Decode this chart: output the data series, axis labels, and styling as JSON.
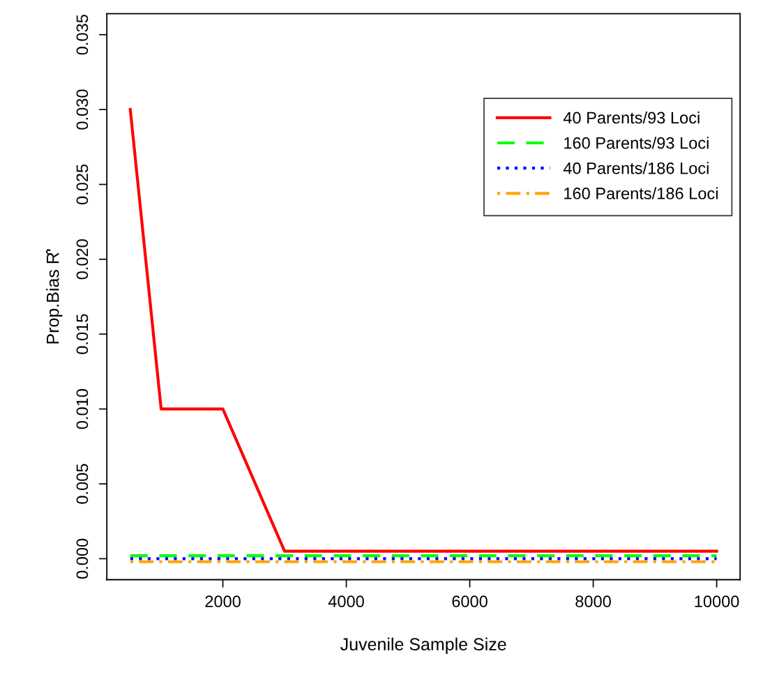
{
  "chart_data": {
    "type": "line",
    "xlabel": "Juvenile Sample Size",
    "ylabel": "Prop.Bias R̂'",
    "x": [
      500,
      1000,
      2000,
      3000,
      4000,
      5000,
      6000,
      7000,
      8000,
      9000,
      10000
    ],
    "series": [
      {
        "name": "40 Parents/93 Loci",
        "color": "#ff0000",
        "line_style": "solid",
        "values": [
          0.03,
          0.01,
          0.01,
          0.0005,
          0.0005,
          0.0005,
          0.0005,
          0.0005,
          0.0005,
          0.0005,
          0.0005
        ]
      },
      {
        "name": "160 Parents/93 Loci",
        "color": "#00ff00",
        "line_style": "dashed",
        "values": [
          0.0002,
          0.0002,
          0.0002,
          0.0002,
          0.0002,
          0.0002,
          0.0002,
          0.0002,
          0.0002,
          0.0002,
          0.0002
        ]
      },
      {
        "name": "40 Parents/186 Loci",
        "color": "#0000ff",
        "line_style": "dotted",
        "values": [
          0,
          0,
          0,
          0,
          0,
          0,
          0,
          0,
          0,
          0,
          0
        ]
      },
      {
        "name": "160 Parents/186 Loci",
        "color": "#ffa500",
        "line_style": "dashdot",
        "values": [
          -0.0002,
          -0.0002,
          -0.0002,
          -0.0002,
          -0.0002,
          -0.0002,
          -0.0002,
          -0.0002,
          -0.0002,
          -0.0002,
          -0.0002
        ]
      }
    ],
    "xlim": [
      120,
      10380
    ],
    "ylim": [
      -0.0014,
      0.0364
    ],
    "xticks": [
      2000,
      4000,
      6000,
      8000,
      10000
    ],
    "yticks": [
      {
        "value": 0,
        "label": "0.000"
      },
      {
        "value": 0.005,
        "label": "0.005"
      },
      {
        "value": 0.01,
        "label": "0.010"
      },
      {
        "value": 0.015,
        "label": "0.015"
      },
      {
        "value": 0.02,
        "label": "0.020"
      },
      {
        "value": 0.025,
        "label": "0.025"
      },
      {
        "value": 0.03,
        "label": "0.030"
      },
      {
        "value": 0.035,
        "label": "0.035"
      }
    ],
    "grid": false,
    "legend": "top right",
    "marker": "none"
  }
}
